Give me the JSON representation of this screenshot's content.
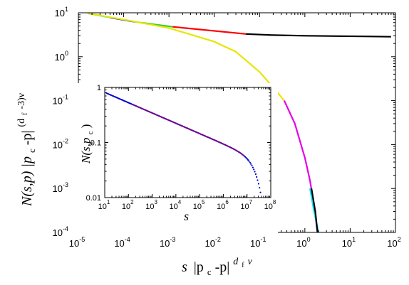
{
  "chart_data": [
    {
      "type": "line",
      "panel": "main",
      "x_scale": "log",
      "y_scale": "log",
      "xlim": [
        1e-05,
        100
      ],
      "ylim": [
        0.0001,
        10
      ],
      "xlabel_parts": [
        "s",
        "|p",
        "c",
        "-p|",
        "d",
        "f",
        "ν"
      ],
      "ylabel_parts": [
        "N(s,p) |p",
        "c",
        "-p|",
        "(d",
        "f",
        "-3)ν"
      ],
      "x_ticks": [
        {
          "base": "10",
          "exp": "-5"
        },
        {
          "base": "10",
          "exp": "-4"
        },
        {
          "base": "10",
          "exp": "-3"
        },
        {
          "base": "10",
          "exp": "-2"
        },
        {
          "base": "10",
          "exp": "-1"
        },
        {
          "base": "10",
          "exp": "0"
        },
        {
          "base": "10",
          "exp": "1"
        },
        {
          "base": "10",
          "exp": "2"
        }
      ],
      "y_ticks": [
        {
          "base": "10",
          "exp": "-4"
        },
        {
          "base": "10",
          "exp": "-3"
        },
        {
          "base": "10",
          "exp": "-2"
        },
        {
          "base": "10",
          "exp": "-1"
        },
        {
          "base": "10",
          "exp": "0"
        },
        {
          "base": "10",
          "exp": "1"
        }
      ],
      "series": [
        {
          "color": "#00e5ff",
          "x": [
            1.6e-05,
            5e-05
          ],
          "y": [
            9.7,
            7.8
          ]
        },
        {
          "color": "#0000cc",
          "x": [
            5e-05,
            0.00018
          ],
          "y": [
            7.8,
            6.2
          ]
        },
        {
          "color": "#33cc33",
          "x": [
            0.00018,
            0.0012
          ],
          "y": [
            6.2,
            4.8
          ]
        },
        {
          "color": "#ff0000",
          "x": [
            0.0012,
            0.05
          ],
          "y": [
            4.8,
            3.3
          ]
        },
        {
          "color": "#000000",
          "x": [
            0.05,
            0.2,
            1,
            5,
            20,
            80
          ],
          "y": [
            3.3,
            3.1,
            3.0,
            2.95,
            2.9,
            2.85
          ]
        },
        {
          "color": "#e6e600",
          "x": [
            1.6e-05,
            0.0001,
            0.001,
            0.01,
            0.03,
            0.1,
            0.2,
            0.35
          ],
          "y": [
            9.7,
            7.0,
            4.5,
            2.2,
            1.3,
            0.45,
            0.2,
            0.1
          ]
        },
        {
          "color": "#e600e6",
          "x": [
            0.35,
            0.6,
            1.0,
            1.3,
            1.6,
            1.9
          ],
          "y": [
            0.1,
            0.03,
            0.005,
            0.0015,
            0.0004,
            0.0001
          ]
        },
        {
          "color": "#00e5ff",
          "x": [
            1.3,
            1.6,
            2.0
          ],
          "y": [
            0.001,
            0.0003,
            0.0001
          ]
        },
        {
          "color": "#000000",
          "x": [
            1.4,
            1.7,
            1.9
          ],
          "y": [
            0.001,
            0.0003,
            0.0001
          ]
        }
      ]
    },
    {
      "type": "scatter",
      "panel": "inset",
      "x_scale": "log",
      "y_scale": "log",
      "xlim": [
        10,
        100000000
      ],
      "ylim": [
        0.01,
        1
      ],
      "xlabel": "s",
      "ylabel_parts": [
        "N(s,p",
        "c",
        ")"
      ],
      "x_ticks": [
        {
          "base": "10",
          "exp": "1"
        },
        {
          "base": "10",
          "exp": "2"
        },
        {
          "base": "10",
          "exp": "3"
        },
        {
          "base": "10",
          "exp": "4"
        },
        {
          "base": "10",
          "exp": "5"
        },
        {
          "base": "10",
          "exp": "6"
        },
        {
          "base": "10",
          "exp": "7"
        },
        {
          "base": "10",
          "exp": "8"
        }
      ],
      "y_tick_labels": [
        "0.01",
        "0.1",
        "1"
      ],
      "y_tick_values": [
        0.01,
        0.1,
        1
      ],
      "power_law": {
        "prefactor": 1.25,
        "exponent": -0.187
      },
      "cutoff": {
        "s0": 30000000,
        "power": 1.5
      },
      "x_range": [
        12,
        70000000
      ],
      "overlay": {
        "color": "#800080",
        "x_range": [
          150,
          8000000
        ]
      },
      "point_color": "#0000cc"
    }
  ]
}
